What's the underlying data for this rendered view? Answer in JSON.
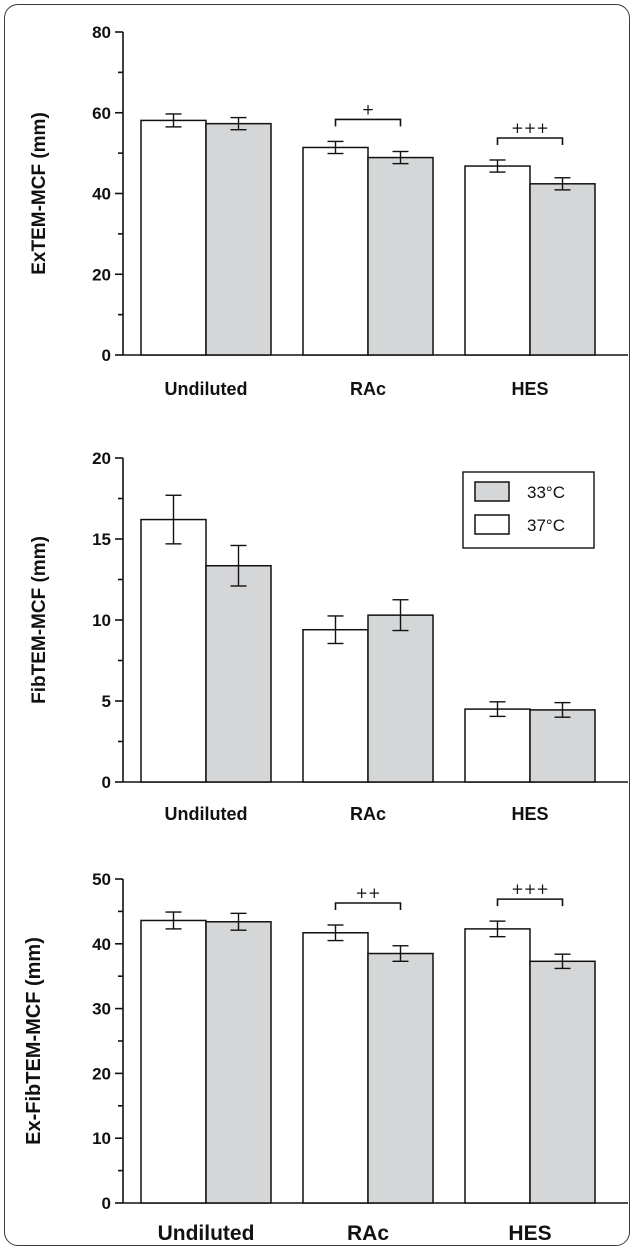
{
  "chart_data": [
    {
      "type": "bar",
      "ylabel": "ExTEM-MCF (mm)",
      "categories": [
        "Undiluted",
        "RAc",
        "HES"
      ],
      "ylim": [
        0,
        80
      ],
      "yticks": [
        0,
        20,
        40,
        60,
        80
      ],
      "series": [
        {
          "name": "37°C",
          "values": [
            58.1,
            51.4,
            46.8
          ],
          "errors": [
            1.6,
            1.5,
            1.5
          ]
        },
        {
          "name": "33°C",
          "values": [
            57.3,
            48.9,
            42.4
          ],
          "errors": [
            1.5,
            1.5,
            1.5
          ]
        }
      ],
      "significance": [
        {
          "category": "RAc",
          "label": "+"
        },
        {
          "category": "HES",
          "label": "+++"
        }
      ],
      "legend": false
    },
    {
      "type": "bar",
      "ylabel": "FibTEM-MCF (mm)",
      "categories": [
        "Undiluted",
        "RAc",
        "HES"
      ],
      "ylim": [
        0,
        20
      ],
      "yticks": [
        0,
        5,
        10,
        15,
        20
      ],
      "series": [
        {
          "name": "37°C",
          "values": [
            16.2,
            9.4,
            4.5
          ],
          "errors": [
            1.5,
            0.85,
            0.45
          ]
        },
        {
          "name": "33°C",
          "values": [
            13.35,
            10.3,
            4.45
          ],
          "errors": [
            1.25,
            0.95,
            0.45
          ]
        }
      ],
      "significance": [],
      "legend": true,
      "legend_position": "top-right",
      "legend_order": [
        "33°C",
        "37°C"
      ]
    },
    {
      "type": "bar",
      "ylabel": "Ex-FibTEM-MCF (mm)",
      "categories": [
        "Undiluted",
        "RAc",
        "HES"
      ],
      "ylim": [
        0,
        50
      ],
      "yticks": [
        0,
        10,
        20,
        30,
        40,
        50
      ],
      "series": [
        {
          "name": "37°C",
          "values": [
            43.6,
            41.7,
            42.3
          ],
          "errors": [
            1.3,
            1.2,
            1.2
          ]
        },
        {
          "name": "33°C",
          "values": [
            43.4,
            38.5,
            37.3
          ],
          "errors": [
            1.3,
            1.2,
            1.1
          ]
        }
      ],
      "significance": [
        {
          "category": "RAc",
          "label": "++"
        },
        {
          "category": "HES",
          "label": "+++"
        }
      ],
      "legend": false
    }
  ]
}
